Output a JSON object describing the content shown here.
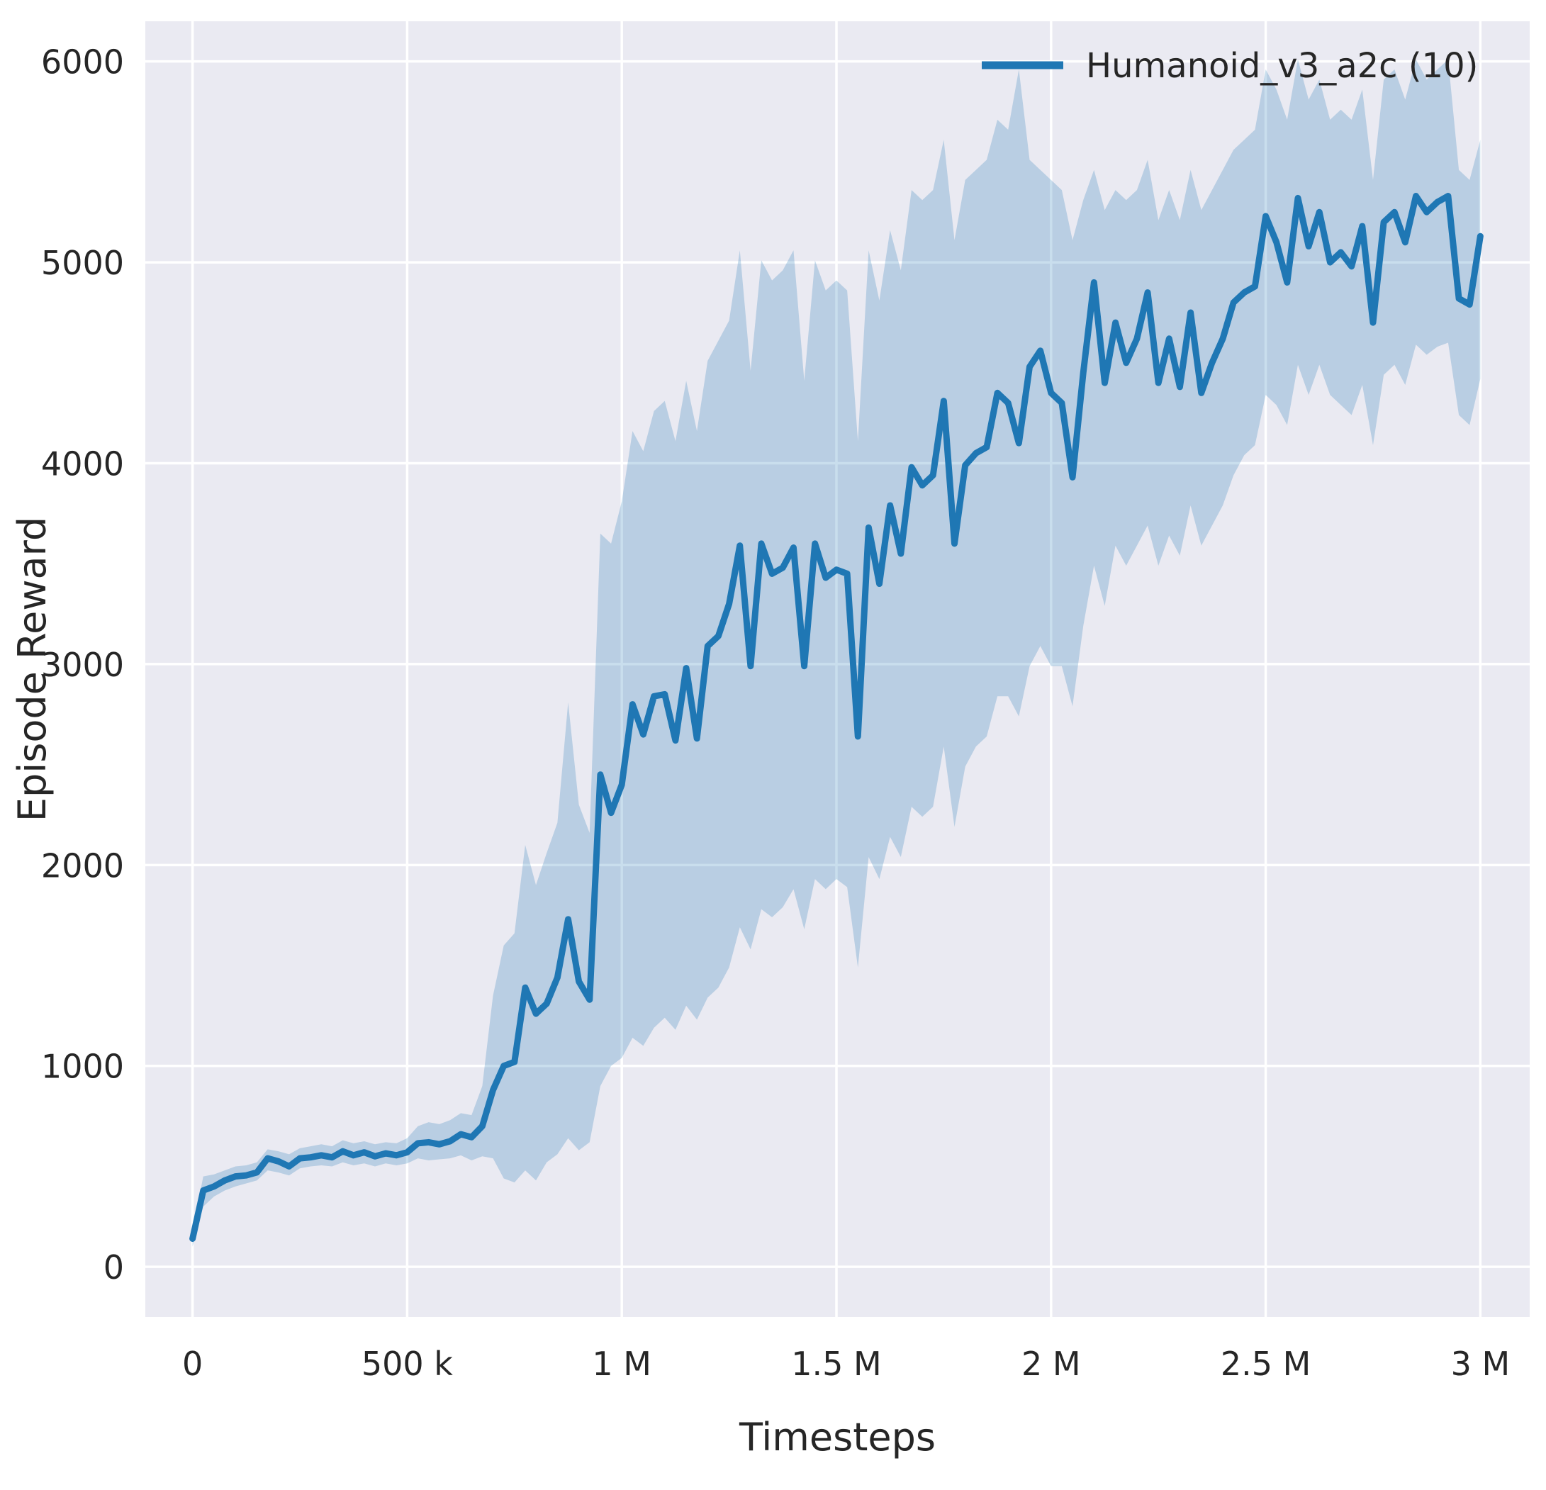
{
  "figure": {
    "background": "#ffffff",
    "plot_background": "#eaeaf2",
    "grid_color": "#ffffff",
    "text_color": "#262626"
  },
  "chart_data": {
    "type": "line",
    "title": "",
    "xlabel": "Timesteps",
    "ylabel": "Episode Reward",
    "grid": true,
    "legend_position": "upper right",
    "legend": [
      {
        "label": "Humanoid_v3_a2c (10)",
        "color": "#1f77b4"
      }
    ],
    "x_unit": "timesteps (values stored in thousands)",
    "xlim_k": [
      -110,
      3115
    ],
    "ylim": [
      -250,
      6200
    ],
    "xticks": [
      {
        "v": 0,
        "label": "0"
      },
      {
        "v": 500,
        "label": "500 k"
      },
      {
        "v": 1000,
        "label": "1 M"
      },
      {
        "v": 1500,
        "label": "1.5 M"
      },
      {
        "v": 2000,
        "label": "2 M"
      },
      {
        "v": 2500,
        "label": "2.5 M"
      },
      {
        "v": 3000,
        "label": "3 M"
      }
    ],
    "yticks": [
      {
        "v": 0,
        "label": "0"
      },
      {
        "v": 1000,
        "label": "1000"
      },
      {
        "v": 2000,
        "label": "2000"
      },
      {
        "v": 3000,
        "label": "3000"
      },
      {
        "v": 4000,
        "label": "4000"
      },
      {
        "v": 5000,
        "label": "5000"
      },
      {
        "v": 6000,
        "label": "6000"
      }
    ],
    "series": [
      {
        "name": "Humanoid_v3_a2c (10)",
        "color": "#1f77b4",
        "line_width": 9,
        "band_opacity": 0.24,
        "x_k": [
          0,
          25,
          50,
          75,
          100,
          125,
          150,
          175,
          200,
          225,
          250,
          275,
          300,
          325,
          350,
          375,
          400,
          425,
          450,
          475,
          500,
          525,
          550,
          575,
          600,
          625,
          650,
          675,
          700,
          725,
          750,
          775,
          800,
          825,
          850,
          875,
          900,
          925,
          950,
          975,
          1000,
          1025,
          1050,
          1075,
          1100,
          1125,
          1150,
          1175,
          1200,
          1225,
          1250,
          1275,
          1300,
          1325,
          1350,
          1375,
          1400,
          1425,
          1450,
          1475,
          1500,
          1525,
          1550,
          1575,
          1600,
          1625,
          1650,
          1675,
          1700,
          1725,
          1750,
          1775,
          1800,
          1825,
          1850,
          1875,
          1900,
          1925,
          1950,
          1975,
          2000,
          2025,
          2050,
          2075,
          2100,
          2125,
          2150,
          2175,
          2200,
          2225,
          2250,
          2275,
          2300,
          2325,
          2350,
          2375,
          2400,
          2425,
          2450,
          2475,
          2500,
          2525,
          2550,
          2575,
          2600,
          2625,
          2650,
          2675,
          2700,
          2725,
          2750,
          2775,
          2800,
          2825,
          2850,
          2875,
          2900,
          2925,
          2950,
          2975,
          3000
        ],
        "mean": [
          140,
          380,
          400,
          430,
          450,
          455,
          470,
          540,
          525,
          500,
          540,
          545,
          555,
          545,
          575,
          555,
          570,
          550,
          565,
          555,
          570,
          615,
          620,
          610,
          625,
          660,
          645,
          700,
          880,
          1000,
          1020,
          1390,
          1260,
          1310,
          1440,
          1730,
          1420,
          1330,
          2450,
          2260,
          2400,
          2800,
          2650,
          2840,
          2850,
          2620,
          2980,
          2630,
          3090,
          3140,
          3300,
          3590,
          2990,
          3600,
          3450,
          3480,
          3580,
          2990,
          3600,
          3430,
          3470,
          3450,
          2640,
          3680,
          3400,
          3790,
          3550,
          3980,
          3890,
          3940,
          4310,
          3600,
          3990,
          4050,
          4080,
          4350,
          4300,
          4100,
          4480,
          4560,
          4350,
          4300,
          3930,
          4450,
          4900,
          4400,
          4700,
          4500,
          4620,
          4850,
          4400,
          4620,
          4380,
          4750,
          4350,
          4500,
          4620,
          4800,
          4850,
          4880,
          5230,
          5100,
          4900,
          5320,
          5080,
          5250,
          5000,
          5050,
          4980,
          5180,
          4700,
          5200,
          5250,
          5100,
          5330,
          5250,
          5300,
          5330,
          4820,
          4790,
          5130
        ],
        "band_low": [
          100,
          300,
          350,
          380,
          400,
          415,
          430,
          480,
          470,
          455,
          490,
          500,
          505,
          500,
          520,
          505,
          515,
          500,
          515,
          505,
          515,
          540,
          530,
          535,
          540,
          555,
          530,
          550,
          540,
          440,
          420,
          480,
          430,
          520,
          560,
          640,
          580,
          620,
          900,
          1000,
          1040,
          1140,
          1100,
          1190,
          1240,
          1180,
          1300,
          1230,
          1340,
          1390,
          1490,
          1690,
          1580,
          1780,
          1740,
          1790,
          1880,
          1680,
          1930,
          1880,
          1930,
          1890,
          1490,
          2040,
          1930,
          2140,
          2040,
          2290,
          2240,
          2290,
          2590,
          2190,
          2490,
          2590,
          2640,
          2840,
          2840,
          2740,
          2990,
          3090,
          2990,
          2990,
          2790,
          3190,
          3490,
          3290,
          3590,
          3490,
          3590,
          3690,
          3490,
          3640,
          3540,
          3790,
          3590,
          3690,
          3790,
          3940,
          4040,
          4090,
          4340,
          4290,
          4190,
          4490,
          4340,
          4490,
          4340,
          4290,
          4240,
          4390,
          4090,
          4440,
          4490,
          4390,
          4590,
          4540,
          4580,
          4600,
          4240,
          4190,
          4420
        ],
        "band_high": [
          180,
          450,
          460,
          480,
          500,
          505,
          520,
          585,
          575,
          560,
          590,
          600,
          610,
          600,
          630,
          615,
          625,
          610,
          620,
          615,
          640,
          700,
          720,
          710,
          730,
          765,
          755,
          900,
          1350,
          1600,
          1660,
          2100,
          1900,
          2060,
          2210,
          2810,
          2300,
          2160,
          3650,
          3600,
          3810,
          4160,
          4060,
          4260,
          4310,
          4110,
          4410,
          4160,
          4510,
          4610,
          4710,
          5060,
          4460,
          5010,
          4910,
          4960,
          5060,
          4410,
          5010,
          4860,
          4910,
          4860,
          4110,
          5060,
          4810,
          5160,
          4960,
          5360,
          5310,
          5360,
          5610,
          5110,
          5410,
          5460,
          5510,
          5710,
          5660,
          5960,
          5510,
          5460,
          5410,
          5360,
          5110,
          5310,
          5460,
          5260,
          5360,
          5310,
          5360,
          5510,
          5210,
          5360,
          5210,
          5460,
          5260,
          5360,
          5460,
          5560,
          5610,
          5660,
          5960,
          5860,
          5710,
          6010,
          5810,
          5910,
          5710,
          5760,
          5710,
          5860,
          5410,
          5910,
          5960,
          5810,
          6010,
          5910,
          5960,
          6010,
          5460,
          5410,
          5610
        ]
      }
    ]
  }
}
